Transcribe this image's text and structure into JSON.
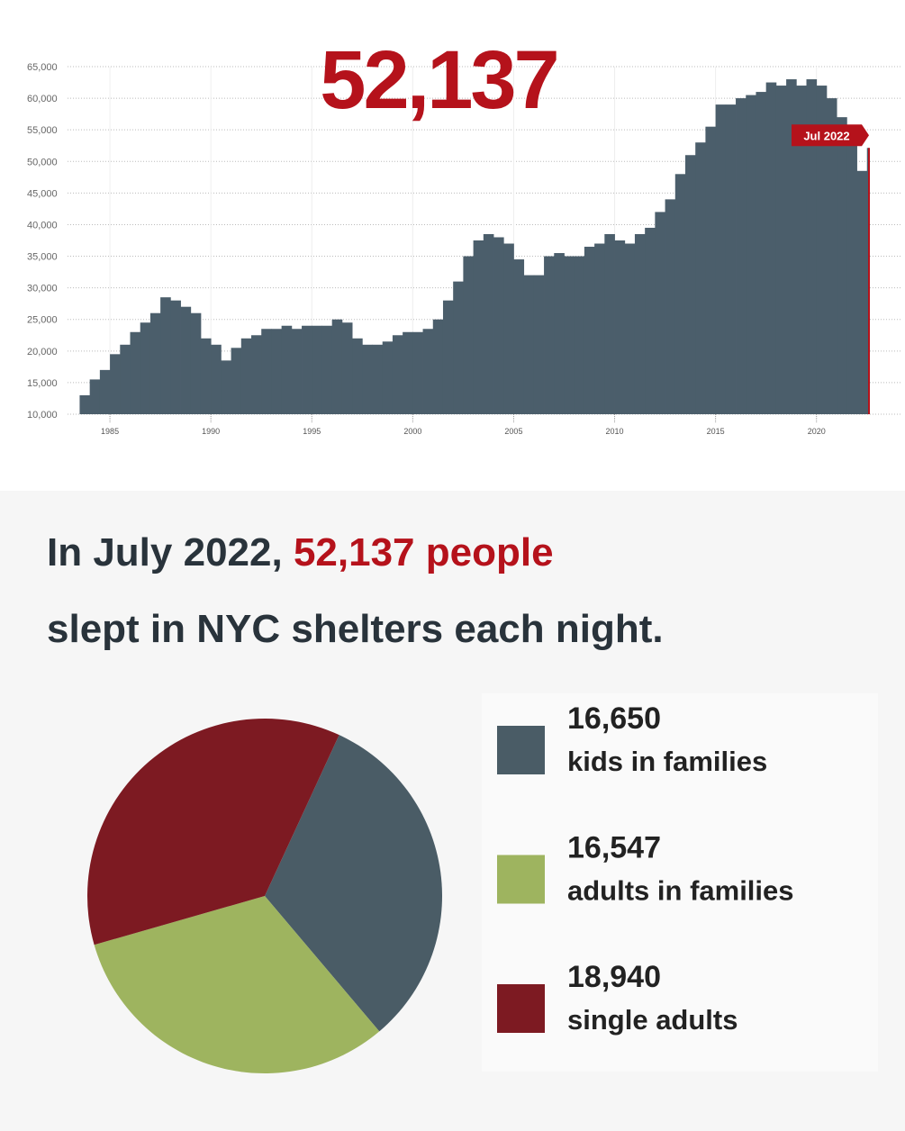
{
  "chart_data": [
    {
      "type": "bar",
      "title": "52,137",
      "annotation": "Jul 2022",
      "color": "#4b5e6b",
      "annotation_color": "#b5121b",
      "x": [
        1983.5,
        1984.0,
        1984.5,
        1985.0,
        1985.5,
        1986.0,
        1986.5,
        1987.0,
        1987.5,
        1988.0,
        1988.5,
        1989.0,
        1989.5,
        1990.0,
        1990.5,
        1991.0,
        1991.5,
        1992.0,
        1992.5,
        1993.0,
        1993.5,
        1994.0,
        1994.5,
        1995.0,
        1995.5,
        1996.0,
        1996.5,
        1997.0,
        1997.5,
        1998.0,
        1998.5,
        1999.0,
        1999.5,
        2000.0,
        2000.5,
        2001.0,
        2001.5,
        2002.0,
        2002.5,
        2003.0,
        2003.5,
        2004.0,
        2004.5,
        2005.0,
        2005.5,
        2006.0,
        2006.5,
        2007.0,
        2007.5,
        2008.0,
        2008.5,
        2009.0,
        2009.5,
        2010.0,
        2010.5,
        2011.0,
        2011.5,
        2012.0,
        2012.5,
        2013.0,
        2013.5,
        2014.0,
        2014.5,
        2015.0,
        2015.5,
        2016.0,
        2016.5,
        2017.0,
        2017.5,
        2018.0,
        2018.5,
        2019.0,
        2019.5,
        2020.0,
        2020.5,
        2021.0,
        2021.5,
        2022.0,
        2022.5
      ],
      "values": [
        13000,
        15500,
        17000,
        19500,
        21000,
        23000,
        24500,
        26000,
        28500,
        28000,
        27000,
        26000,
        22000,
        21000,
        18500,
        20500,
        22000,
        22500,
        23500,
        23500,
        24000,
        23500,
        24000,
        24000,
        24000,
        25000,
        24500,
        22000,
        21000,
        21000,
        21500,
        22500,
        23000,
        23000,
        23500,
        25000,
        28000,
        31000,
        35000,
        37500,
        38500,
        38000,
        37000,
        34500,
        32000,
        32000,
        35000,
        35500,
        35000,
        35000,
        36500,
        37000,
        38500,
        37500,
        37000,
        38500,
        39500,
        42000,
        44000,
        48000,
        51000,
        53000,
        55500,
        59000,
        59000,
        60000,
        60500,
        61000,
        62500,
        62000,
        63000,
        62000,
        63000,
        62000,
        60000,
        57000,
        54000,
        48500,
        52137
      ],
      "xlim": [
        1982.9,
        2022.6
      ],
      "ylim": [
        10000,
        65000
      ],
      "xticks": [
        1985,
        1990,
        1995,
        2000,
        2005,
        2010,
        2015,
        2020
      ],
      "yticks": [
        {
          "value": 10000,
          "label": "10,000"
        },
        {
          "value": 15000,
          "label": "15,000"
        },
        {
          "value": 20000,
          "label": "20,000"
        },
        {
          "value": 25000,
          "label": "25,000"
        },
        {
          "value": 30000,
          "label": "30,000"
        },
        {
          "value": 35000,
          "label": "35,000"
        },
        {
          "value": 40000,
          "label": "40,000"
        },
        {
          "value": 45000,
          "label": "45,000"
        },
        {
          "value": 50000,
          "label": "50,000"
        },
        {
          "value": 55000,
          "label": "55,000"
        },
        {
          "value": 60000,
          "label": "60,000"
        },
        {
          "value": 65000,
          "label": "65,000"
        }
      ],
      "grid": true
    },
    {
      "type": "pie",
      "categories": [
        "kids in families",
        "adults in families",
        "single adults"
      ],
      "values": [
        16650,
        16547,
        18940
      ],
      "value_labels": [
        "16,650",
        "16,547",
        "18,940"
      ],
      "colors": [
        "#4a5c66",
        "#9eb45f",
        "#7d1a22"
      ]
    }
  ],
  "summary": [
    "In July 2022,",
    "52,137 people",
    "slept in NYC shelters each night."
  ]
}
